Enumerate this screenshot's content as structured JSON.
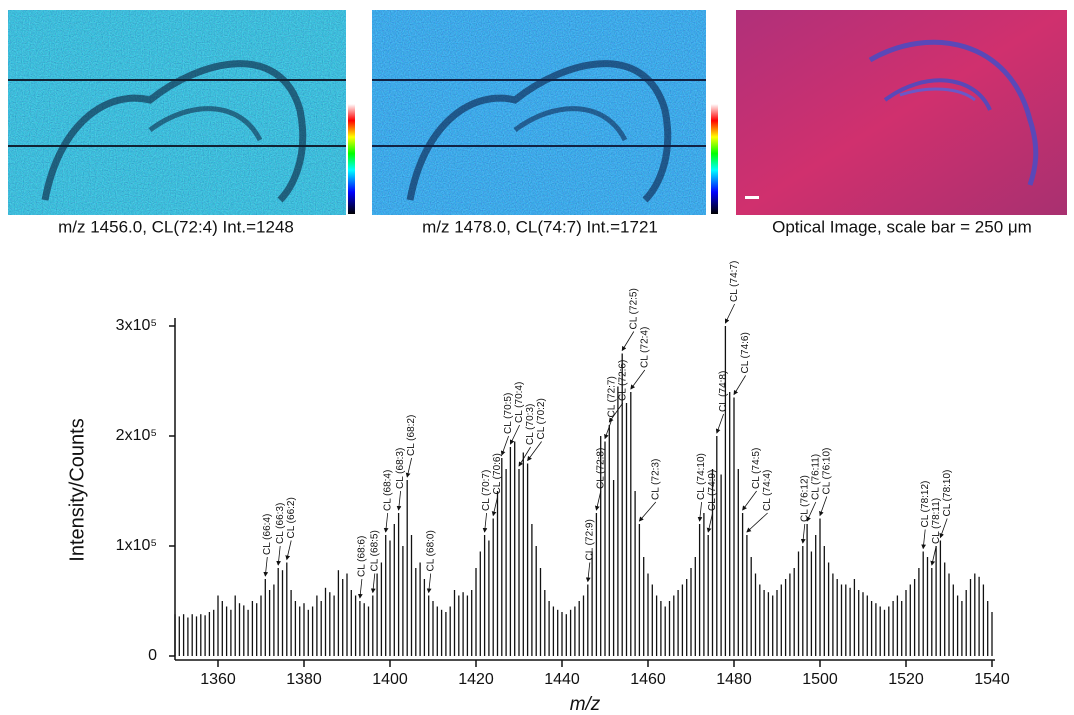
{
  "panels": [
    {
      "caption": "m/z 1456.0, CL(72:4) Int.=1248"
    },
    {
      "caption": "m/z 1478.0, CL(74:7) Int.=1721"
    },
    {
      "caption": "Optical Image, scale bar = 250 μm"
    }
  ],
  "chart_data": {
    "type": "spectrum",
    "xlabel": "m/z",
    "ylabel": "Intensity/Counts",
    "color": "#111111",
    "xlim": [
      1350,
      1540
    ],
    "ylim": [
      0,
      300000
    ],
    "xticks": [
      1360,
      1380,
      1400,
      1420,
      1440,
      1460,
      1480,
      1500,
      1520,
      1540
    ],
    "yticks": [
      0,
      {
        "value": 100000,
        "label": "1x10⁵"
      },
      {
        "value": 200000,
        "label": "2x10⁵"
      },
      {
        "value": 300000,
        "label": "3x10⁵"
      }
    ],
    "x": [
      1350,
      1351,
      1352,
      1353,
      1354,
      1355,
      1356,
      1357,
      1358,
      1359,
      1360,
      1361,
      1362,
      1363,
      1364,
      1365,
      1366,
      1367,
      1368,
      1369,
      1370,
      1371,
      1372,
      1373,
      1374,
      1375,
      1376,
      1377,
      1378,
      1379,
      1380,
      1381,
      1382,
      1383,
      1384,
      1385,
      1386,
      1387,
      1388,
      1389,
      1390,
      1391,
      1392,
      1393,
      1394,
      1395,
      1396,
      1397,
      1398,
      1399,
      1400,
      1401,
      1402,
      1403,
      1404,
      1405,
      1406,
      1407,
      1408,
      1409,
      1410,
      1411,
      1412,
      1413,
      1414,
      1415,
      1416,
      1417,
      1418,
      1419,
      1420,
      1421,
      1422,
      1423,
      1424,
      1425,
      1426,
      1427,
      1428,
      1429,
      1430,
      1431,
      1432,
      1433,
      1434,
      1435,
      1436,
      1437,
      1438,
      1439,
      1440,
      1441,
      1442,
      1443,
      1444,
      1445,
      1446,
      1447,
      1448,
      1449,
      1450,
      1451,
      1452,
      1453,
      1454,
      1455,
      1456,
      1457,
      1458,
      1459,
      1460,
      1461,
      1462,
      1463,
      1464,
      1465,
      1466,
      1467,
      1468,
      1469,
      1470,
      1471,
      1472,
      1473,
      1474,
      1475,
      1476,
      1477,
      1478,
      1479,
      1480,
      1481,
      1482,
      1483,
      1484,
      1485,
      1486,
      1487,
      1488,
      1489,
      1490,
      1491,
      1492,
      1493,
      1494,
      1495,
      1496,
      1497,
      1498,
      1499,
      1500,
      1501,
      1502,
      1503,
      1504,
      1505,
      1506,
      1507,
      1508,
      1509,
      1510,
      1511,
      1512,
      1513,
      1514,
      1515,
      1516,
      1517,
      1518,
      1519,
      1520,
      1521,
      1522,
      1523,
      1524,
      1525,
      1526,
      1527,
      1528,
      1529,
      1530,
      1531,
      1532,
      1533,
      1534,
      1535,
      1536,
      1537,
      1538,
      1539,
      1540
    ],
    "values": [
      38000,
      36000,
      38000,
      35000,
      38000,
      36000,
      38000,
      37000,
      40000,
      42000,
      55000,
      50000,
      45000,
      42000,
      55000,
      48000,
      46000,
      42000,
      50000,
      48000,
      55000,
      70000,
      60000,
      65000,
      80000,
      78000,
      85000,
      60000,
      50000,
      45000,
      48000,
      42000,
      45000,
      55000,
      50000,
      62000,
      58000,
      55000,
      78000,
      70000,
      75000,
      60000,
      55000,
      50000,
      48000,
      45000,
      55000,
      75000,
      85000,
      110000,
      105000,
      120000,
      130000,
      100000,
      160000,
      110000,
      80000,
      85000,
      70000,
      55000,
      50000,
      45000,
      42000,
      40000,
      45000,
      60000,
      55000,
      58000,
      55000,
      60000,
      80000,
      95000,
      110000,
      105000,
      125000,
      150000,
      180000,
      170000,
      190000,
      195000,
      170000,
      185000,
      175000,
      120000,
      100000,
      80000,
      60000,
      50000,
      45000,
      42000,
      40000,
      38000,
      42000,
      45000,
      50000,
      55000,
      65000,
      95000,
      130000,
      200000,
      195000,
      210000,
      160000,
      245000,
      275000,
      230000,
      240000,
      150000,
      120000,
      90000,
      75000,
      65000,
      55000,
      50000,
      45000,
      50000,
      55000,
      60000,
      65000,
      70000,
      80000,
      90000,
      120000,
      130000,
      110000,
      170000,
      200000,
      165000,
      300000,
      240000,
      235000,
      170000,
      130000,
      110000,
      90000,
      75000,
      65000,
      60000,
      58000,
      55000,
      60000,
      65000,
      70000,
      75000,
      80000,
      95000,
      100000,
      120000,
      95000,
      110000,
      125000,
      100000,
      85000,
      75000,
      70000,
      65000,
      65000,
      62000,
      70000,
      60000,
      58000,
      55000,
      50000,
      48000,
      45000,
      42000,
      45000,
      50000,
      55000,
      50000,
      60000,
      65000,
      70000,
      80000,
      95000,
      90000,
      80000,
      100000,
      105000,
      85000,
      75000,
      65000,
      55000,
      50000,
      60000,
      70000,
      75000,
      72000,
      65000,
      50000,
      40000
    ],
    "annotations": [
      {
        "text": "CL (66:4)",
        "x": 1371
      },
      {
        "text": "CL (66:3)",
        "x": 1374
      },
      {
        "text": "CL (66:2)",
        "x": 1376
      },
      {
        "text": "CL (68:6)",
        "x": 1393
      },
      {
        "text": "CL (68:5)",
        "x": 1396
      },
      {
        "text": "CL (68:4)",
        "x": 1399
      },
      {
        "text": "CL (68:3)",
        "x": 1402
      },
      {
        "text": "CL (68:2)",
        "x": 1404
      },
      {
        "text": "CL (68:0)",
        "x": 1409
      },
      {
        "text": "CL (70:7)",
        "x": 1422
      },
      {
        "text": "CL (70:6)",
        "x": 1424
      },
      {
        "text": "CL (70:5)",
        "x": 1426
      },
      {
        "text": "CL (70:4)",
        "x": 1428
      },
      {
        "text": "CL (70:3)",
        "x": 1430
      },
      {
        "text": "CL (70:2)",
        "x": 1432
      },
      {
        "text": "CL (72:9)",
        "x": 1446
      },
      {
        "text": "CL (72:8)",
        "x": 1448
      },
      {
        "text": "CL (72:7)",
        "x": 1450
      },
      {
        "text": "CL (72:6)",
        "x": 1451
      },
      {
        "text": "CL (72:5)",
        "x": 1454
      },
      {
        "text": "CL (72:4)",
        "x": 1456
      },
      {
        "text": "CL (72:3)",
        "x": 1458
      },
      {
        "text": "CL (74:10)",
        "x": 1472
      },
      {
        "text": "CL (74:9)",
        "x": 1474
      },
      {
        "text": "CL (74:8)",
        "x": 1476
      },
      {
        "text": "CL (74:7)",
        "x": 1478
      },
      {
        "text": "CL (74:6)",
        "x": 1480
      },
      {
        "text": "CL (74:5)",
        "x": 1482
      },
      {
        "text": "CL (74:4)",
        "x": 1483
      },
      {
        "text": "CL (76:12)",
        "x": 1496
      },
      {
        "text": "CL (76:11)",
        "x": 1497
      },
      {
        "text": "CL (76:10)",
        "x": 1500
      },
      {
        "text": "CL (78:12)",
        "x": 1524
      },
      {
        "text": "CL (78:11)",
        "x": 1526
      },
      {
        "text": "CL (78:10)",
        "x": 1528
      }
    ]
  }
}
